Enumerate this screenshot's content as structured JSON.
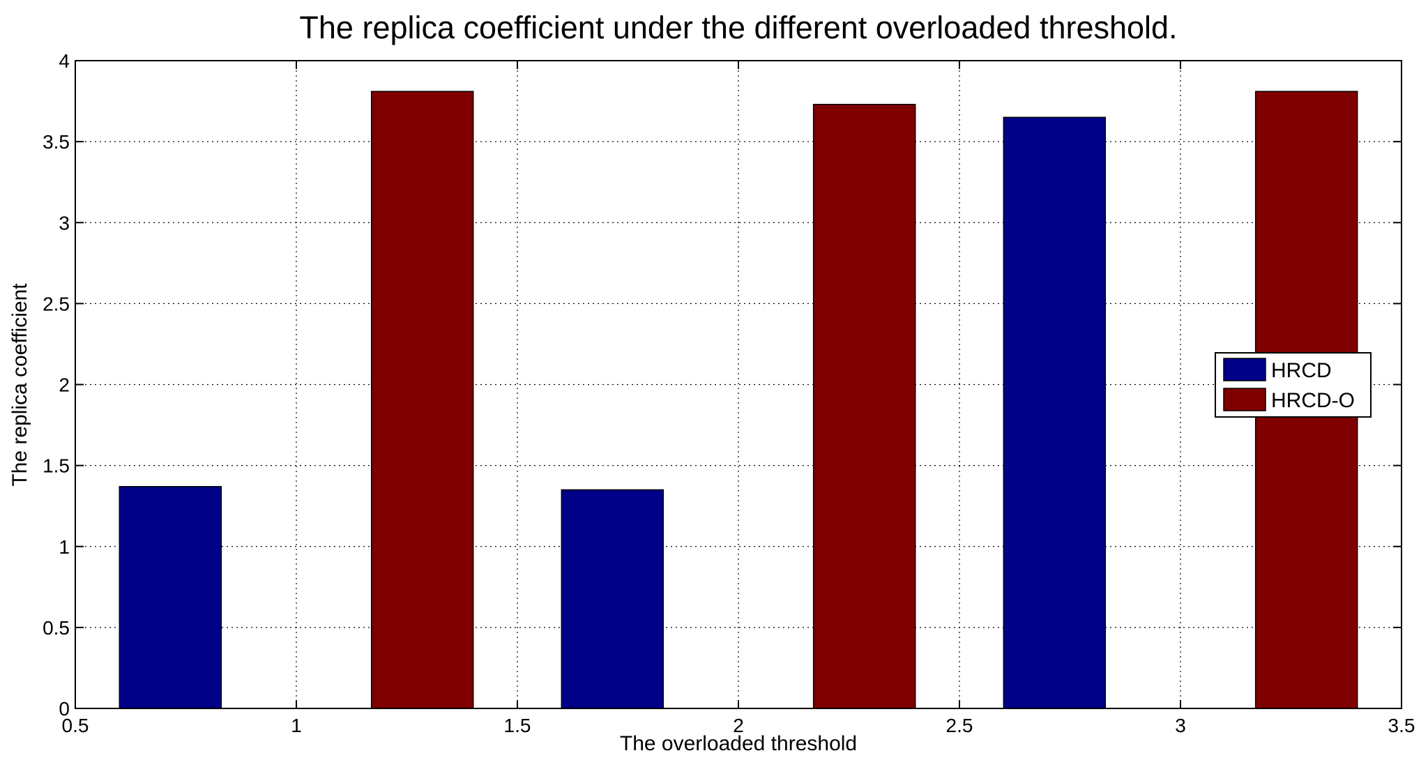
{
  "chart_data": {
    "type": "bar",
    "title": "The replica coefficient under the different overloaded threshold.",
    "xlabel": "The overloaded threshold",
    "ylabel": "The replica coefficient",
    "xlim": [
      0.5,
      3.5
    ],
    "ylim": [
      0,
      4
    ],
    "grid": true,
    "legend_position": "right",
    "x": [
      1,
      2,
      3
    ],
    "series": [
      {
        "name": "HRCD",
        "color": "#000088",
        "values": [
          1.37,
          1.35,
          3.65
        ]
      },
      {
        "name": "HRCD-O",
        "color": "#800000",
        "values": [
          3.81,
          3.73,
          3.81
        ]
      }
    ],
    "xticks": [
      "0.5",
      "1",
      "1.5",
      "2",
      "2.5",
      "3",
      "3.5"
    ],
    "yticks": [
      "0",
      "0.5",
      "1",
      "1.5",
      "2",
      "2.5",
      "3",
      "3.5",
      "4"
    ]
  }
}
